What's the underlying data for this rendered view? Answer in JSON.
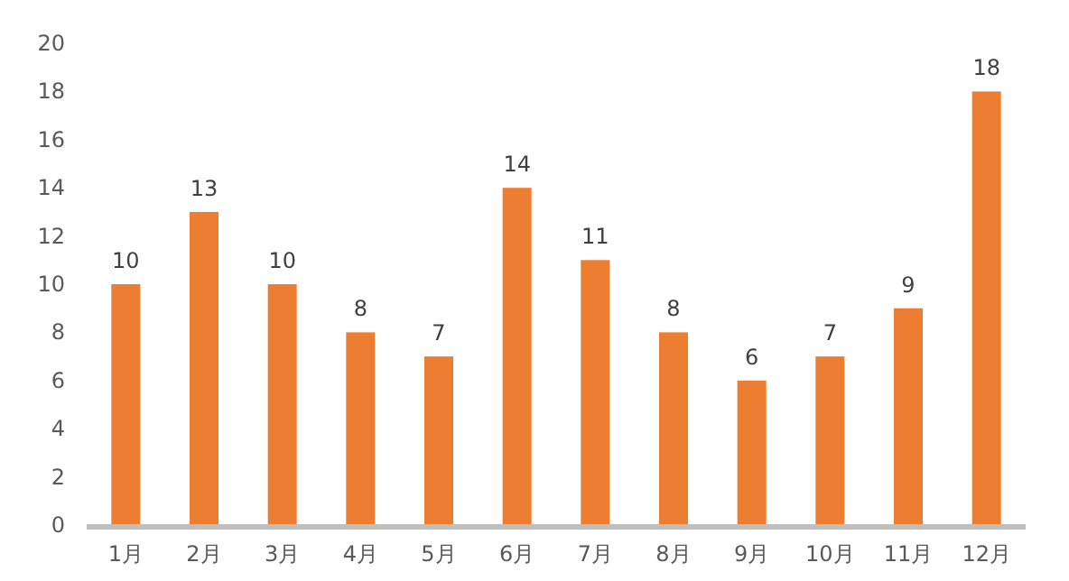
{
  "chart_data": {
    "type": "bar",
    "categories": [
      "1月",
      "2月",
      "3月",
      "4月",
      "5月",
      "6月",
      "7月",
      "8月",
      "9月",
      "10月",
      "11月",
      "12月"
    ],
    "values": [
      10,
      13,
      10,
      8,
      7,
      14,
      11,
      8,
      6,
      7,
      9,
      18
    ],
    "color": "#ed7d31",
    "ylim": [
      0,
      20
    ],
    "yticks": [
      0,
      2,
      4,
      6,
      8,
      10,
      12,
      14,
      16,
      18,
      20
    ],
    "data_labels": true
  }
}
